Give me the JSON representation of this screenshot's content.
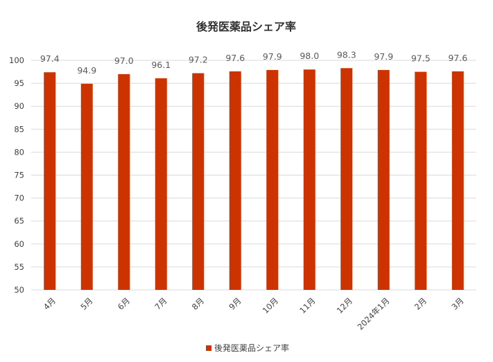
{
  "chart_data": {
    "type": "bar",
    "title": "後発医薬品シェア率",
    "categories": [
      "4月",
      "5月",
      "6月",
      "7月",
      "8月",
      "9月",
      "10月",
      "11月",
      "12月",
      "2024年1月",
      "2月",
      "3月"
    ],
    "series": [
      {
        "name": "後発医薬品シェア率",
        "values": [
          97.4,
          94.9,
          97.0,
          96.1,
          97.2,
          97.6,
          97.9,
          98.0,
          98.3,
          97.9,
          97.5,
          97.6
        ],
        "labels": [
          "97.4",
          "94.9",
          "97.0",
          "96.1",
          "97.2",
          "97.6",
          "97.9",
          "98.0",
          "98.3",
          "97.9",
          "97.5",
          "97.6"
        ],
        "color": "#CC3300"
      }
    ],
    "yticks": [
      "50",
      "55",
      "60",
      "65",
      "70",
      "75",
      "80",
      "85",
      "90",
      "95",
      "100"
    ],
    "ylim": [
      50,
      100
    ],
    "grid": true,
    "legend_position": "bottom"
  }
}
